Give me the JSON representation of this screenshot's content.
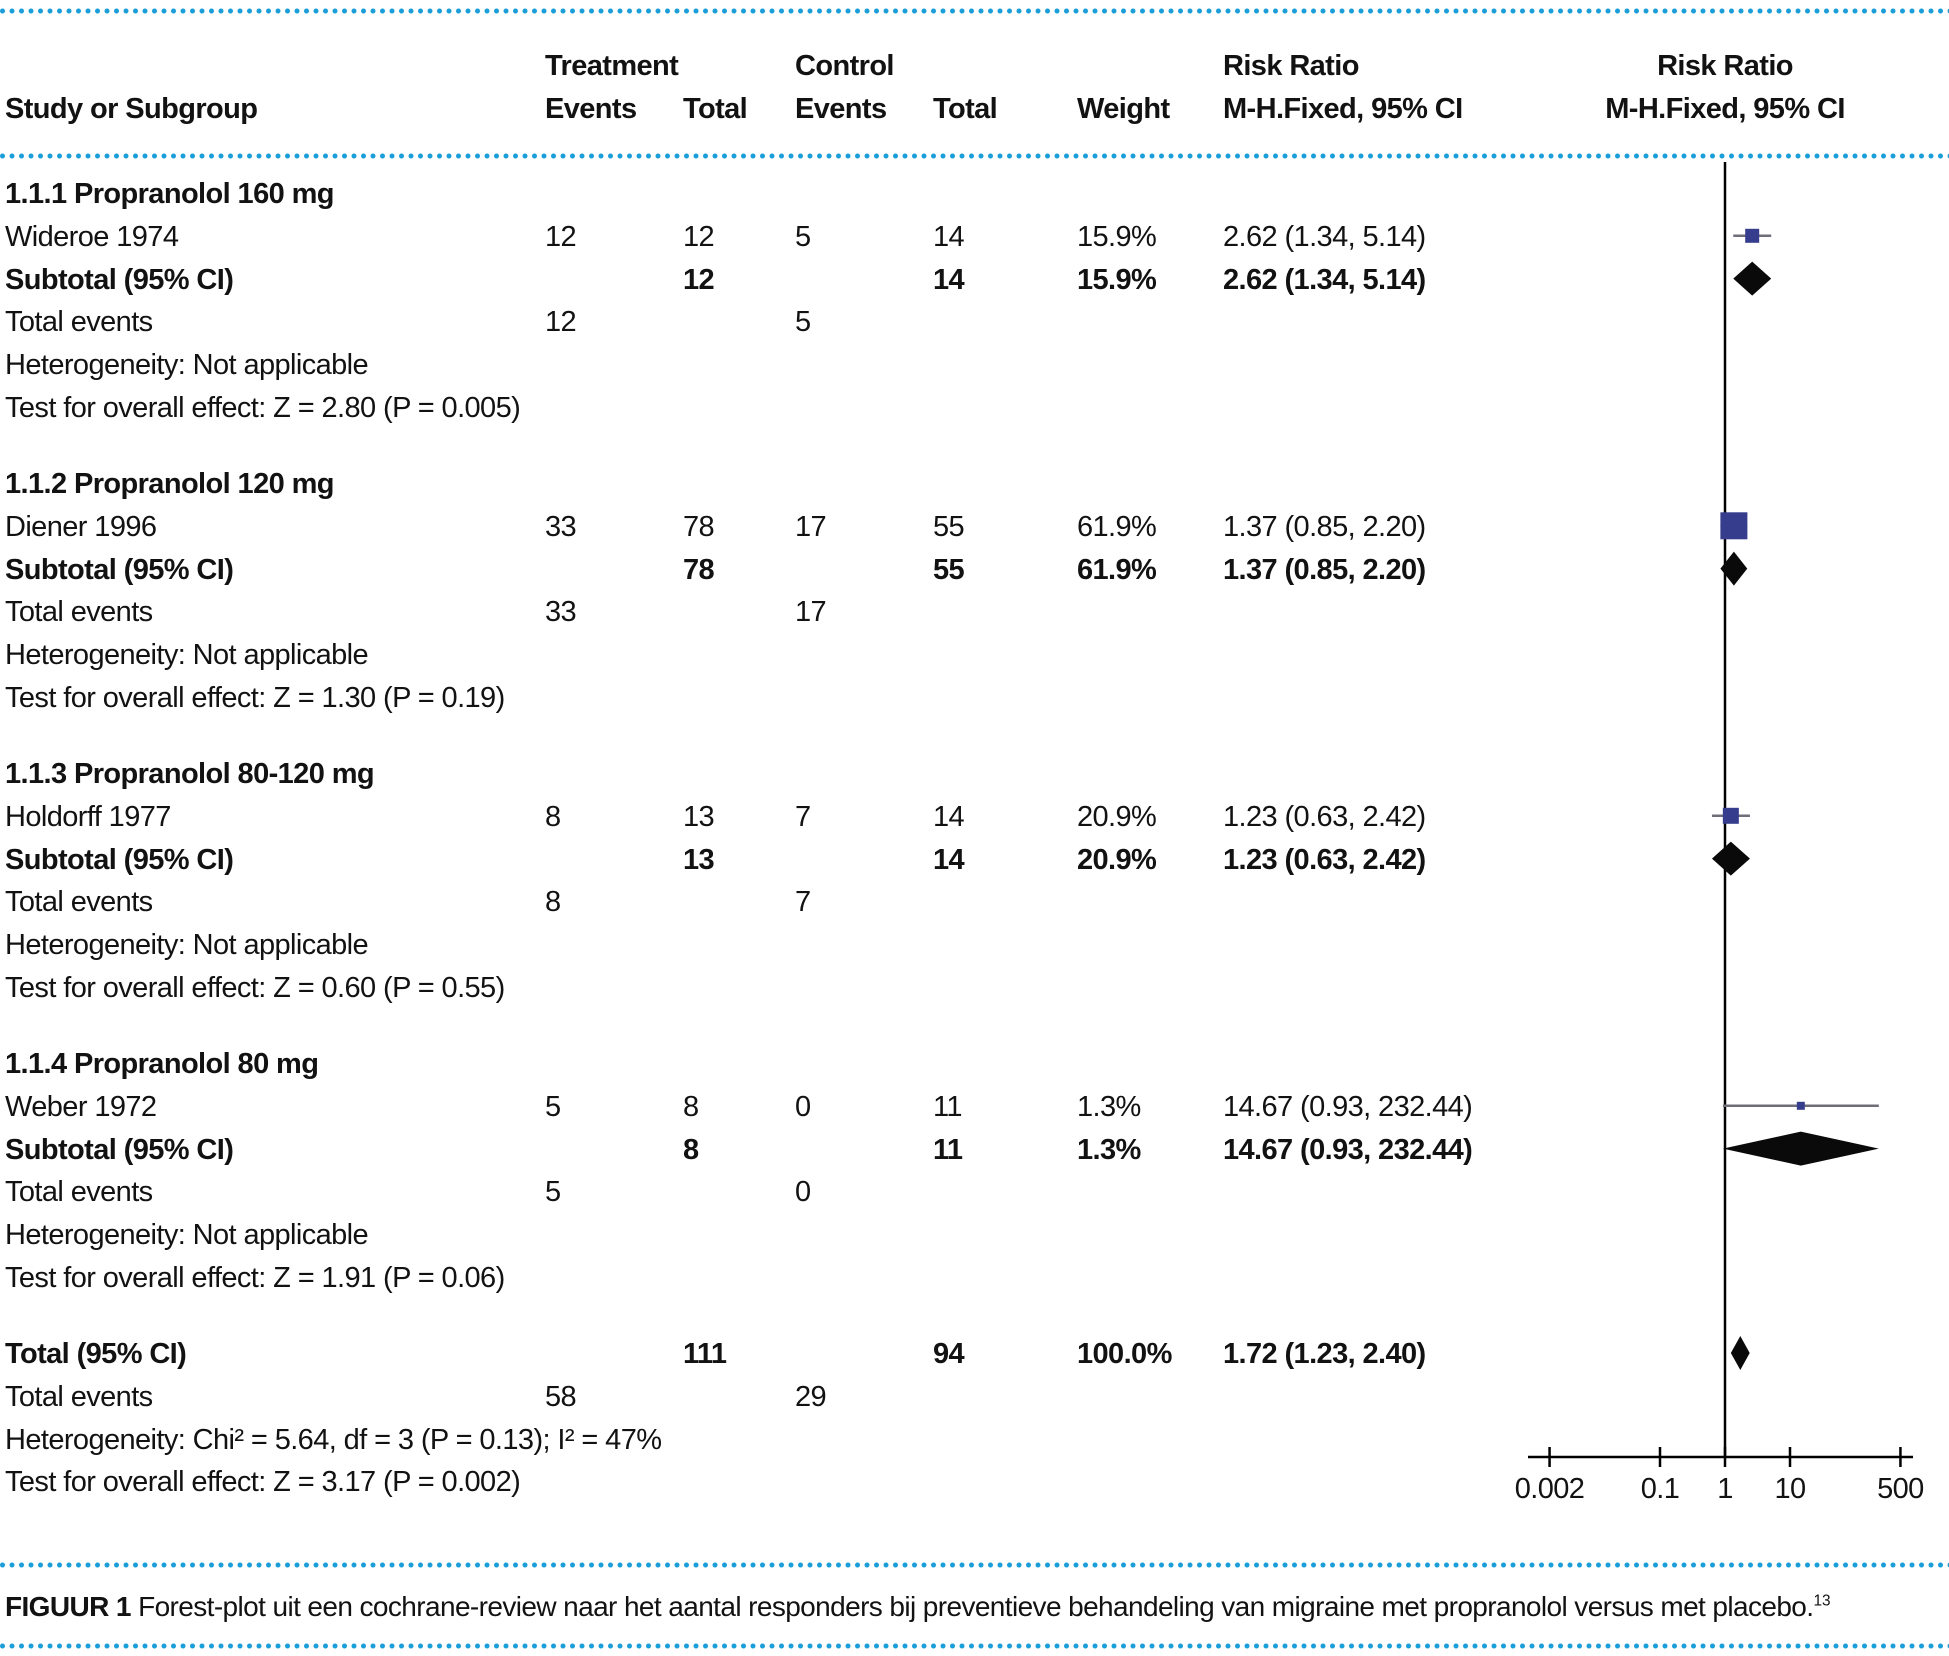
{
  "header": {
    "study_col": "Study or Subgroup",
    "treatment_group": "Treatment",
    "control_group": "Control",
    "events": "Events",
    "total": "Total",
    "weight": "Weight",
    "risk_ratio_line1": "Risk Ratio",
    "risk_ratio_line2": "M-H.Fixed, 95% CI"
  },
  "chart_data": {
    "type": "forest",
    "effect_measure": "Risk Ratio, M-H Fixed, 95% CI",
    "axis": {
      "scale": "log",
      "min": 0.002,
      "max": 500,
      "tick_labels": [
        "0.002",
        "0.1",
        "1",
        "10",
        "500"
      ],
      "tick_values": [
        0.002,
        0.1,
        1,
        10,
        500
      ]
    },
    "sections": [
      {
        "heading": "1.1.1 Propranolol 160 mg",
        "study": {
          "name": "Wideroe 1974",
          "t_events": "12",
          "t_total": "12",
          "c_events": "5",
          "c_total": "14",
          "weight": "15.9%",
          "weight_pct": 15.9,
          "rr_text": "2.62 (1.34, 5.14)",
          "rr": 2.62,
          "lo": 1.34,
          "hi": 5.14
        },
        "subtotal": {
          "label": "Subtotal (95% CI)",
          "t_total": "12",
          "c_total": "14",
          "weight": "15.9%",
          "rr_text": "2.62 (1.34, 5.14)",
          "rr": 2.62,
          "lo": 1.34,
          "hi": 5.14
        },
        "total_events": {
          "label": "Total events",
          "t": "12",
          "c": "5"
        },
        "heterogeneity": "Heterogeneity: Not applicable",
        "test": "Test for overall effect: Z = 2.80 (P = 0.005)"
      },
      {
        "heading": "1.1.2 Propranolol 120 mg",
        "study": {
          "name": "Diener 1996",
          "t_events": "33",
          "t_total": "78",
          "c_events": "17",
          "c_total": "55",
          "weight": "61.9%",
          "weight_pct": 61.9,
          "rr_text": "1.37 (0.85, 2.20)",
          "rr": 1.37,
          "lo": 0.85,
          "hi": 2.2
        },
        "subtotal": {
          "label": "Subtotal (95% CI)",
          "t_total": "78",
          "c_total": "55",
          "weight": "61.9%",
          "rr_text": "1.37 (0.85, 2.20)",
          "rr": 1.37,
          "lo": 0.85,
          "hi": 2.2
        },
        "total_events": {
          "label": "Total events",
          "t": "33",
          "c": "17"
        },
        "heterogeneity": "Heterogeneity: Not applicable",
        "test": "Test for overall effect: Z = 1.30 (P = 0.19)"
      },
      {
        "heading": "1.1.3 Propranolol 80-120 mg",
        "study": {
          "name": "Holdorff 1977",
          "t_events": "8",
          "t_total": "13",
          "c_events": "7",
          "c_total": "14",
          "weight": "20.9%",
          "weight_pct": 20.9,
          "rr_text": "1.23 (0.63, 2.42)",
          "rr": 1.23,
          "lo": 0.63,
          "hi": 2.42
        },
        "subtotal": {
          "label": "Subtotal (95% CI)",
          "t_total": "13",
          "c_total": "14",
          "weight": "20.9%",
          "rr_text": "1.23 (0.63, 2.42)",
          "rr": 1.23,
          "lo": 0.63,
          "hi": 2.42
        },
        "total_events": {
          "label": "Total events",
          "t": "8",
          "c": "7"
        },
        "heterogeneity": "Heterogeneity: Not applicable",
        "test": "Test for overall effect: Z = 0.60 (P = 0.55)"
      },
      {
        "heading": "1.1.4 Propranolol 80 mg",
        "study": {
          "name": "Weber 1972",
          "t_events": "5",
          "t_total": "8",
          "c_events": "0",
          "c_total": "11",
          "weight": "1.3%",
          "weight_pct": 1.3,
          "rr_text": "14.67 (0.93, 232.44)",
          "rr": 14.67,
          "lo": 0.93,
          "hi": 232.44
        },
        "subtotal": {
          "label": "Subtotal (95% CI)",
          "t_total": "8",
          "c_total": "11",
          "weight": "1.3%",
          "rr_text": "14.67 (0.93, 232.44)",
          "rr": 14.67,
          "lo": 0.93,
          "hi": 232.44
        },
        "total_events": {
          "label": "Total events",
          "t": "5",
          "c": "0"
        },
        "heterogeneity": "Heterogeneity: Not applicable",
        "test": "Test for overall effect: Z = 1.91 (P = 0.06)"
      }
    ],
    "total": {
      "label": "Total (95% CI)",
      "t_total": "111",
      "c_total": "94",
      "weight": "100.0%",
      "rr_text": "1.72 (1.23, 2.40)",
      "rr": 1.72,
      "lo": 1.23,
      "hi": 2.4,
      "total_events": {
        "label": "Total events",
        "t": "58",
        "c": "29"
      },
      "heterogeneity": "Heterogeneity: Chi² = 5.64, df = 3 (P = 0.13); I² = 47%",
      "test": "Test for overall effect: Z = 3.17 (P = 0.002)"
    }
  },
  "caption": {
    "label": "FIGUUR 1",
    "text": "Forest-plot uit een cochrane-review naar het aantal responders bij preventieve behandeling van migraine met propranolol versus met placebo.",
    "ref": "13"
  },
  "colors": {
    "marker_square": "#363d8d",
    "diamond": "#0a0a0a",
    "ci_line": "#6e6e78",
    "dotted_line": "#1a9ed9",
    "text": "#121212"
  }
}
